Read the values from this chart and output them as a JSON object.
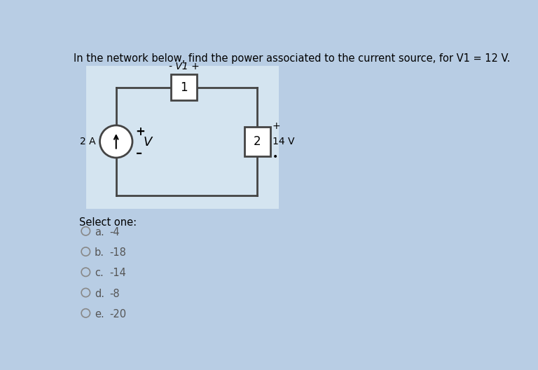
{
  "title": "In the network below, find the power associated to the current source, for V1 = 12 V.",
  "bg_color": "#b8cde4",
  "panel_bg": "#ffffff",
  "panel_bg2": "#dce8f0",
  "question_fontsize": 10.5,
  "circuit": {
    "current_source_label": "2 A",
    "resistor1_label": "1",
    "resistor2_label": "2",
    "voltage_source_label": "14 V",
    "v1_label": "- V1 +"
  },
  "options": [
    {
      "letter": "a.",
      "value": "-4"
    },
    {
      "letter": "b.",
      "value": "-18"
    },
    {
      "letter": "c.",
      "value": "-14"
    },
    {
      "letter": "d.",
      "value": "-8"
    },
    {
      "letter": "e.",
      "value": "-20"
    }
  ],
  "select_one_text": "Select one:"
}
